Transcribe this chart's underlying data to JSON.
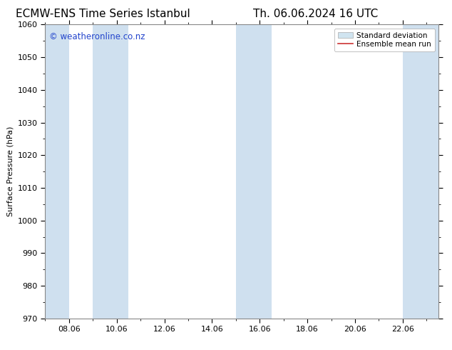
{
  "title_left": "ECMW-ENS Time Series Istanbul",
  "title_right": "Th. 06.06.2024 16 UTC",
  "ylabel": "Surface Pressure (hPa)",
  "ylim": [
    970,
    1060
  ],
  "yticks": [
    970,
    980,
    990,
    1000,
    1010,
    1020,
    1030,
    1040,
    1050,
    1060
  ],
  "xlim_start": 7.0,
  "xlim_end": 23.5,
  "xtick_labels": [
    "08.06",
    "10.06",
    "12.06",
    "14.06",
    "16.06",
    "18.06",
    "20.06",
    "22.06"
  ],
  "xtick_positions": [
    8,
    10,
    12,
    14,
    16,
    18,
    20,
    22
  ],
  "shaded_bands": [
    {
      "x_start": 7.0,
      "x_end": 8.0
    },
    {
      "x_start": 9.0,
      "x_end": 10.5
    },
    {
      "x_start": 15.0,
      "x_end": 16.5
    },
    {
      "x_start": 22.0,
      "x_end": 23.5
    }
  ],
  "band_color": "#cfe0ef",
  "band_alpha": 1.0,
  "mean_line_color": "#aaccee",
  "watermark_text": "© weatheronline.co.nz",
  "watermark_color": "#2244cc",
  "watermark_fontsize": 8.5,
  "bg_color": "#ffffff",
  "legend_std_facecolor": "#d0e4f0",
  "legend_std_edgecolor": "#aaaaaa",
  "legend_mean_color": "#cc3333",
  "title_fontsize": 11,
  "ylabel_fontsize": 8,
  "tick_fontsize": 8,
  "minor_tick_interval": 1.0,
  "spine_color": "#888888",
  "spine_linewidth": 0.8
}
